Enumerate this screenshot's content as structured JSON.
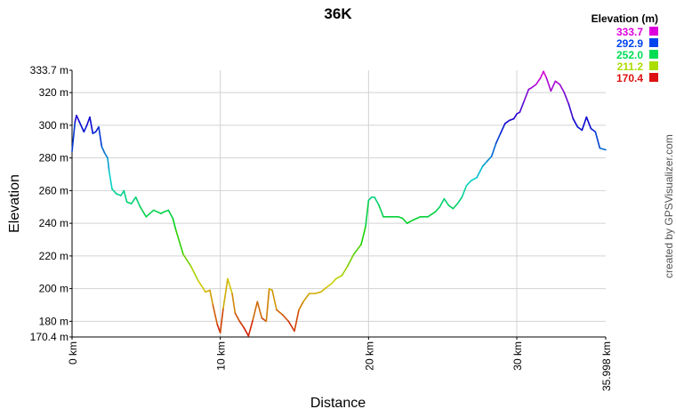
{
  "chart_data": {
    "type": "line",
    "title": "36K",
    "xlabel": "Distance",
    "ylabel": "Elevation",
    "xlim": [
      0,
      35.998
    ],
    "ylim": [
      170.4,
      333.7
    ],
    "x_ticks": [
      {
        "value": 0,
        "label": "0 km"
      },
      {
        "value": 10,
        "label": "10 km"
      },
      {
        "value": 20,
        "label": "20 km"
      },
      {
        "value": 30,
        "label": "30 km"
      },
      {
        "value": 35.998,
        "label": "35.998 km"
      }
    ],
    "y_ticks": [
      {
        "value": 170.4,
        "label": "170.4 m"
      },
      {
        "value": 180,
        "label": "180 m"
      },
      {
        "value": 200,
        "label": "200 m"
      },
      {
        "value": 220,
        "label": "220 m"
      },
      {
        "value": 240,
        "label": "240 m"
      },
      {
        "value": 260,
        "label": "260 m"
      },
      {
        "value": 280,
        "label": "280 m"
      },
      {
        "value": 300,
        "label": "300 m"
      },
      {
        "value": 320,
        "label": "320 m"
      },
      {
        "value": 333.7,
        "label": "333.7 m"
      }
    ],
    "grid": true,
    "legend": {
      "title": "Elevation (m)",
      "placement": "top-right",
      "entries": [
        {
          "label": "333.7",
          "color": "#dd00dd"
        },
        {
          "label": "292.9",
          "color": "#0044ee"
        },
        {
          "label": "252.0",
          "color": "#00dd55"
        },
        {
          "label": "211.2",
          "color": "#aadd00"
        },
        {
          "label": "170.4",
          "color": "#dd1111"
        }
      ]
    },
    "series": [
      {
        "x": [
          0,
          0.2,
          0.3,
          0.5,
          0.8,
          1.0,
          1.2,
          1.4,
          1.6,
          1.8,
          2.0,
          2.2,
          2.4,
          2.5,
          2.7,
          3.0,
          3.3,
          3.5,
          3.7,
          4.0,
          4.3,
          4.6,
          5.0,
          5.5,
          6.0,
          6.2,
          6.5,
          6.8,
          7.0,
          7.5,
          8.0,
          8.5,
          9.0,
          9.3,
          9.5,
          9.8,
          10.0,
          10.2,
          10.5,
          10.8,
          11.0,
          11.3,
          11.6,
          11.9,
          12.2,
          12.5,
          12.8,
          13.1,
          13.3,
          13.5,
          13.8,
          14.2,
          14.6,
          15.0,
          15.3,
          15.6,
          16.0,
          16.4,
          16.8,
          17.2,
          17.5,
          17.8,
          18.2,
          18.6,
          19.0,
          19.5,
          19.8,
          20.0,
          20.2,
          20.4,
          20.7,
          21.0,
          21.5,
          22.0,
          22.3,
          22.6,
          23.0,
          23.5,
          24.0,
          24.5,
          24.8,
          25.1,
          25.4,
          25.7,
          26.0,
          26.3,
          26.6,
          26.9,
          27.3,
          27.7,
          28.0,
          28.3,
          28.6,
          28.9,
          29.2,
          29.5,
          29.8,
          30.0,
          30.2,
          30.5,
          30.8,
          31.0,
          31.3,
          31.6,
          31.8,
          32.0,
          32.3,
          32.6,
          32.9,
          33.2,
          33.5,
          33.8,
          34.1,
          34.4,
          34.7,
          35.0,
          35.3,
          35.6,
          35.998
        ],
        "values": [
          284,
          302,
          306,
          302,
          296,
          300,
          305,
          295,
          296,
          299,
          287,
          283,
          280,
          272,
          261,
          258,
          257,
          260,
          253,
          252,
          256,
          250,
          244,
          248,
          246,
          247,
          248,
          243,
          236,
          221,
          214,
          205,
          198,
          199,
          190,
          178,
          173,
          188,
          206,
          197,
          185,
          180,
          176,
          171,
          181,
          192,
          182,
          180,
          200,
          199,
          187,
          184,
          180,
          174,
          187,
          192,
          197,
          197,
          198,
          201,
          203,
          206,
          208,
          214,
          221,
          227,
          238,
          254,
          256,
          256,
          251,
          244,
          244,
          244,
          243,
          240,
          242,
          244,
          244,
          247,
          250,
          255,
          251,
          249,
          252,
          256,
          263,
          266,
          268,
          275,
          278,
          281,
          289,
          295,
          301,
          303,
          304,
          307,
          308,
          315,
          322,
          323,
          325,
          329,
          333,
          329,
          321,
          327,
          325,
          320,
          313,
          304,
          299,
          297,
          305,
          298,
          296,
          286,
          285
        ]
      }
    ]
  },
  "watermark": "created by GPSVisualizer.com"
}
